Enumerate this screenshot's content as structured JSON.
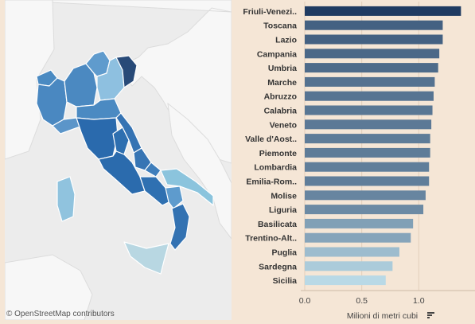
{
  "map": {
    "attribution": "© OpenStreetMap contributors"
  },
  "chart_data": {
    "type": "bar",
    "orientation": "horizontal",
    "sorted": "descending",
    "categories": [
      "Friuli-Venezi..",
      "Toscana",
      "Lazio",
      "Campania",
      "Umbria",
      "Marche",
      "Abruzzo",
      "Calabria",
      "Veneto",
      "Valle d'Aost..",
      "Piemonte",
      "Lombardia",
      "Emilia-Rom..",
      "Molise",
      "Liguria",
      "Basilicata",
      "Trentino-Alt..",
      "Puglia",
      "Sardegna",
      "Sicilia"
    ],
    "values": [
      1.37,
      1.21,
      1.21,
      1.18,
      1.17,
      1.14,
      1.13,
      1.12,
      1.11,
      1.1,
      1.1,
      1.09,
      1.09,
      1.06,
      1.04,
      0.95,
      0.93,
      0.83,
      0.77,
      0.71
    ],
    "xlabel": "Milioni di metri cubi",
    "ylabel": "",
    "xlim": [
      0,
      1.5
    ],
    "xticks": [
      "0.0",
      "0.5",
      "1.0"
    ],
    "xtick_values": [
      0,
      0.5,
      1.0
    ],
    "grid": true,
    "color_scale": [
      "#b9d9e6",
      "#1f3b62"
    ],
    "sort_icon": "sort-descending-icon"
  }
}
